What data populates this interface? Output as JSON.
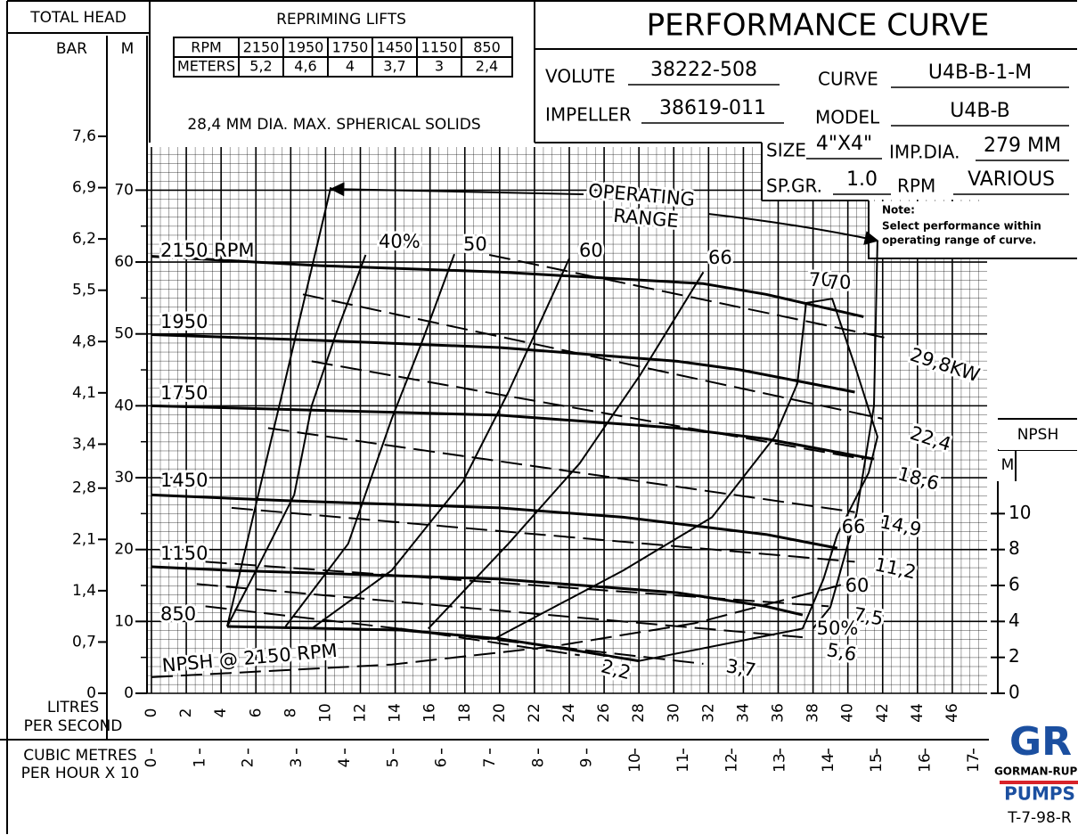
{
  "header": {
    "total_head": "TOTAL HEAD",
    "bar": "BAR",
    "m": "M",
    "repriming_title": "REPRIMING LIFTS",
    "repriming_table": {
      "rows": [
        [
          "RPM",
          "2150",
          "1950",
          "1750",
          "1450",
          "1150",
          "850"
        ],
        [
          "METERS",
          "5,2",
          "4,6",
          "4",
          "3,7",
          "3",
          "2,4"
        ]
      ]
    },
    "solids": "28,4 MM DIA. MAX. SPHERICAL SOLIDS",
    "title": "PERFORMANCE CURVE",
    "specs": [
      {
        "label": "VOLUTE",
        "value": "38222-508"
      },
      {
        "label": "CURVE",
        "value": "U4B-B-1-M"
      },
      {
        "label": "IMPELLER",
        "value": "38619-011"
      },
      {
        "label": "MODEL",
        "value": "U4B-B"
      },
      {
        "label": "SIZE",
        "value": "4\"X4\""
      },
      {
        "label": "IMP.DIA.",
        "value": "279 MM"
      },
      {
        "label": "SP.GR.",
        "value": "1.0"
      },
      {
        "label": "RPM",
        "value": "VARIOUS"
      }
    ],
    "note_title": "Note:",
    "note": [
      "Select performance within",
      "operating range of curve."
    ],
    "logo": {
      "mark": "GR",
      "name": "GORMAN-RUPP",
      "pumps": "PUMPS"
    },
    "drawing_no": "T-7-98-R"
  },
  "chart_data": {
    "type": "line",
    "color": "#000000",
    "xlabel": [
      "LITRES",
      "PER SECOND"
    ],
    "x2label": [
      "CUBIC METRES",
      "PER HOUR X 10"
    ],
    "y2label": "NPSH",
    "y2unit": "M",
    "xlim": [
      0,
      48
    ],
    "xticks": [
      0,
      2,
      4,
      6,
      8,
      10,
      12,
      14,
      16,
      18,
      20,
      22,
      24,
      26,
      28,
      30,
      32,
      34,
      36,
      38,
      40,
      42,
      44,
      46
    ],
    "x2lim": [
      0,
      17.28
    ],
    "x2ticks": [
      0,
      1,
      2,
      3,
      4,
      5,
      6,
      7,
      8,
      9,
      10,
      11,
      12,
      13,
      14,
      15,
      16,
      17
    ],
    "ylim": [
      0,
      76
    ],
    "yticks": [
      0,
      10,
      20,
      30,
      40,
      50,
      60,
      70
    ],
    "bar_lim": [
      0,
      7.6
    ],
    "bar_ticks": [
      0,
      {
        "value": 0.7,
        "label": "0,7"
      },
      {
        "value": 1.4,
        "label": "1,4"
      },
      {
        "value": 2.1,
        "label": "2,1"
      },
      {
        "value": 2.8,
        "label": "2,8"
      },
      {
        "value": 3.4,
        "label": "3,4"
      },
      {
        "value": 4.1,
        "label": "4,1"
      },
      {
        "value": 4.8,
        "label": "4,8"
      },
      {
        "value": 5.5,
        "label": "5,5"
      },
      {
        "value": 6.2,
        "label": "6,2"
      },
      {
        "value": 6.9,
        "label": "6,9"
      },
      {
        "value": 7.6,
        "label": "7,6"
      }
    ],
    "y2lim": [
      0,
      30.4
    ],
    "y2ticks": [
      0,
      2,
      4,
      6,
      8,
      10
    ],
    "grid": true,
    "series": [
      {
        "name": "2150 RPM",
        "line_width": 3,
        "x": [
          0,
          9.7,
          20,
          31.7,
          35.3,
          40.9
        ],
        "values": [
          60.8,
          59.5,
          58.6,
          57,
          55.5,
          52.4
        ]
      },
      {
        "name": "1950",
        "line_width": 3,
        "x": [
          0,
          9.7,
          20,
          30.2,
          33.8,
          40.4
        ],
        "values": [
          49.9,
          49.1,
          48.1,
          46.2,
          45,
          41.9
        ]
      },
      {
        "name": "1750",
        "line_width": 3,
        "x": [
          0,
          10.7,
          20,
          30.2,
          35.3,
          41.5
        ],
        "values": [
          40,
          39.3,
          38.7,
          36.9,
          35.4,
          32.6
        ]
      },
      {
        "name": "1450",
        "line_width": 3,
        "x": [
          0,
          7.7,
          20,
          27.1,
          35.3,
          39.4
        ],
        "values": [
          27.6,
          26.8,
          25.8,
          24.5,
          22.1,
          20.2
        ]
      },
      {
        "name": "1150",
        "line_width": 3,
        "x": [
          0,
          4.6,
          20,
          30.2,
          35.3,
          37.4
        ],
        "values": [
          17.6,
          17.1,
          15.9,
          14,
          12.1,
          10.9
        ]
      },
      {
        "name": "850",
        "line_width": 3,
        "x": [
          4.35,
          14.3,
          20,
          24,
          28
        ],
        "values": [
          9.3,
          8.8,
          7.6,
          6.1,
          4.5
        ]
      },
      {
        "name": "NPSH @ 2150 RPM",
        "axis": "y2",
        "dashed": true,
        "line_width": 2,
        "x": [
          0,
          13.8,
          23,
          31.2,
          39.9
        ],
        "values": [
          0.9,
          1.6,
          2.6,
          3.9,
          6.1
        ]
      },
      {
        "name": "40%",
        "line_width": 2,
        "x": [
          4.35,
          6.2,
          8.2,
          9.2,
          10.6,
          12.3
        ],
        "values": [
          9.3,
          18,
          27.6,
          40,
          50,
          61
        ]
      },
      {
        "name": "50",
        "line_width": 2,
        "x": [
          7.7,
          11.3,
          13.8,
          15.6,
          17.4
        ],
        "values": [
          9.3,
          20.8,
          38.2,
          49.3,
          61.1
        ]
      },
      {
        "name": "60",
        "line_width": 2,
        "x": [
          9.2,
          13.8,
          17.9,
          20.5,
          24
        ],
        "values": [
          9,
          17.1,
          29.5,
          41.9,
          60.5
        ]
      },
      {
        "name": "66",
        "line_width": 2,
        "x": [
          15.9,
          20.5,
          24.6,
          28.1,
          31.7
        ],
        "values": [
          9,
          20.8,
          32,
          44.4,
          58.6
        ]
      },
      {
        "name": "70",
        "line_width": 2,
        "x": [
          19.7,
          27.1,
          32.2,
          35.8,
          37.1,
          37.6,
          39.1,
          40.4,
          41.7,
          41.2,
          39.4,
          38.6,
          37.4,
          28
        ],
        "values": [
          7.6,
          17.1,
          24.5,
          35.7,
          43.1,
          54.3,
          54.9,
          45.6,
          35.7,
          30.7,
          22.1,
          15.9,
          9,
          4.5
        ]
      },
      {
        "name": "29,8KW",
        "dashed": true,
        "line_width": 2,
        "x": [
          19.4,
          42.5
        ],
        "values": [
          61,
          49.3
        ]
      },
      {
        "name": "22,4",
        "dashed": true,
        "line_width": 2,
        "x": [
          8.7,
          42
        ],
        "values": [
          55.5,
          38.2
        ]
      },
      {
        "name": "18,6",
        "dashed": true,
        "line_width": 2,
        "x": [
          9.2,
          40.9
        ],
        "values": [
          46.2,
          32.6
        ]
      },
      {
        "name": "14,9",
        "dashed": true,
        "line_width": 2,
        "x": [
          6.7,
          40.4
        ],
        "values": [
          36.9,
          25.2
        ]
      },
      {
        "name": "11,2",
        "dashed": true,
        "line_width": 2,
        "x": [
          4.6,
          40.4
        ],
        "values": [
          25.8,
          18.3
        ]
      },
      {
        "name": "7,5",
        "dashed": true,
        "line_width": 2,
        "x": [
          3.1,
          38.9
        ],
        "values": [
          18.3,
          12.1
        ]
      },
      {
        "name": "5,6",
        "dashed": true,
        "line_width": 2,
        "x": [
          2.6,
          37.4
        ],
        "values": [
          15.2,
          7.8
        ]
      },
      {
        "name": "3,7",
        "dashed": true,
        "line_width": 2,
        "x": [
          3.1,
          31.7
        ],
        "values": [
          12.1,
          4.1
        ]
      },
      {
        "name": "2,2",
        "dashed": true,
        "line_width": 2,
        "x": [
          14.3,
          24.6
        ],
        "values": [
          9,
          5.3
        ]
      },
      {
        "line_width": 2,
        "x": [
          4.35,
          10.3
        ],
        "values": [
          9.3,
          70.4
        ]
      },
      {
        "line_width": 2,
        "x": [
          41.7,
          41.5,
          40.5,
          39,
          38
        ],
        "values": [
          62.9,
          40,
          25,
          12,
          9
        ]
      }
    ],
    "annotations": [
      "OPERATING",
      "RANGE",
      "70",
      "66",
      "60",
      "50%"
    ]
  }
}
